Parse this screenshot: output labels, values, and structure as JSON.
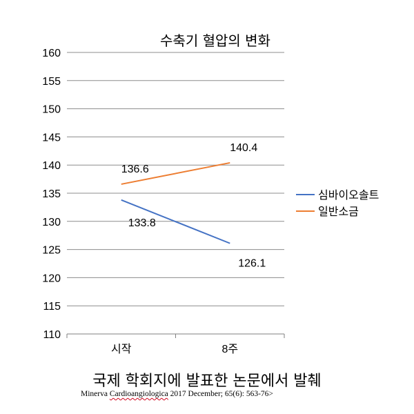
{
  "chart_data": {
    "type": "line",
    "title": "수축기 혈압의 변화",
    "categories": [
      "시작",
      "8주"
    ],
    "ylim": [
      110,
      160
    ],
    "ytick_step": 5,
    "grid": true,
    "legend_position": "right",
    "series": [
      {
        "name": "심바이오솔트",
        "color": "#4472c4",
        "values": [
          133.8,
          126.1
        ],
        "labels": [
          "133.8",
          "126.1"
        ]
      },
      {
        "name": "일반소금",
        "color": "#ed7d31",
        "values": [
          136.6,
          140.4
        ],
        "labels": [
          "136.6",
          "140.4"
        ]
      }
    ],
    "xlabel": "",
    "ylabel": ""
  },
  "source": {
    "main": "국제 학회지에 발표한 논문에서 발췌",
    "citation_prefix": "Minerva ",
    "citation_journal": "Cardioangiologica",
    "citation_suffix": " 2017 December; 65(6): 563-76>"
  }
}
